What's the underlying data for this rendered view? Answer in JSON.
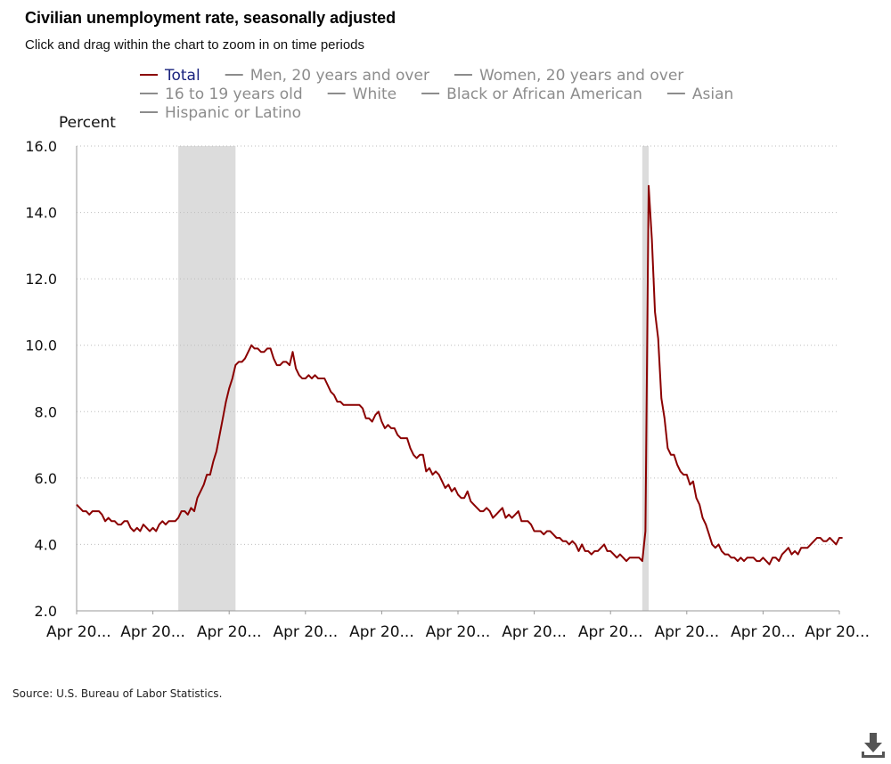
{
  "header": {
    "title": "Civilian unemployment rate, seasonally adjusted",
    "subtitle": "Click and drag within the chart to zoom in on time periods"
  },
  "footer": {
    "source": "Source: U.S. Bureau of Labor Statistics."
  },
  "icons": {
    "download": "download-icon"
  },
  "colors": {
    "total_series": "#8b0000",
    "inactive_series": "#8c8c8c",
    "active_legend_text": "#1a237e",
    "recession_shading": "#dcdcdc",
    "gridline": "#bdbdbd"
  },
  "chart_data": {
    "type": "line",
    "title": "Civilian unemployment rate, seasonally adjusted",
    "ylabel": "Percent",
    "ylim": [
      2.0,
      16.0
    ],
    "yticks": [
      "2.0",
      "4.0",
      "6.0",
      "8.0",
      "10.0",
      "12.0",
      "14.0",
      "16.0"
    ],
    "xticks": [
      "Apr 20...",
      "Apr 20...",
      "Apr 20...",
      "Apr 20...",
      "Apr 20...",
      "Apr 20...",
      "Apr 20...",
      "Apr 20...",
      "Apr 20...",
      "Apr 20...",
      "Apr 20..."
    ],
    "xlim_months": [
      0,
      240
    ],
    "grid": "horizontal dotted",
    "legend_placement": "top",
    "legend": [
      {
        "label": "Total",
        "active": true
      },
      {
        "label": "Men, 20 years and over",
        "active": false
      },
      {
        "label": "Women, 20 years and over",
        "active": false
      },
      {
        "label": "16 to 19 years old",
        "active": false
      },
      {
        "label": "White",
        "active": false
      },
      {
        "label": "Black or African American",
        "active": false
      },
      {
        "label": "Asian",
        "active": false
      },
      {
        "label": "Hispanic or Latino",
        "active": false
      }
    ],
    "recession_bands_months": [
      [
        32,
        50
      ],
      [
        178,
        180
      ]
    ],
    "series": [
      {
        "name": "Total",
        "points_month_value": [
          [
            0,
            5.2
          ],
          [
            1,
            5.1
          ],
          [
            2,
            5.0
          ],
          [
            3,
            5.0
          ],
          [
            4,
            4.9
          ],
          [
            5,
            5.0
          ],
          [
            6,
            5.0
          ],
          [
            7,
            5.0
          ],
          [
            8,
            4.9
          ],
          [
            9,
            4.7
          ],
          [
            10,
            4.8
          ],
          [
            11,
            4.7
          ],
          [
            12,
            4.7
          ],
          [
            13,
            4.6
          ],
          [
            14,
            4.6
          ],
          [
            15,
            4.7
          ],
          [
            16,
            4.7
          ],
          [
            17,
            4.5
          ],
          [
            18,
            4.4
          ],
          [
            19,
            4.5
          ],
          [
            20,
            4.4
          ],
          [
            21,
            4.6
          ],
          [
            22,
            4.5
          ],
          [
            23,
            4.4
          ],
          [
            24,
            4.5
          ],
          [
            25,
            4.4
          ],
          [
            26,
            4.6
          ],
          [
            27,
            4.7
          ],
          [
            28,
            4.6
          ],
          [
            29,
            4.7
          ],
          [
            30,
            4.7
          ],
          [
            31,
            4.7
          ],
          [
            32,
            4.8
          ],
          [
            33,
            5.0
          ],
          [
            34,
            5.0
          ],
          [
            35,
            4.9
          ],
          [
            36,
            5.1
          ],
          [
            37,
            5.0
          ],
          [
            38,
            5.4
          ],
          [
            39,
            5.6
          ],
          [
            40,
            5.8
          ],
          [
            41,
            6.1
          ],
          [
            42,
            6.1
          ],
          [
            43,
            6.5
          ],
          [
            44,
            6.8
          ],
          [
            45,
            7.3
          ],
          [
            46,
            7.8
          ],
          [
            47,
            8.3
          ],
          [
            48,
            8.7
          ],
          [
            49,
            9.0
          ],
          [
            50,
            9.4
          ],
          [
            51,
            9.5
          ],
          [
            52,
            9.5
          ],
          [
            53,
            9.6
          ],
          [
            54,
            9.8
          ],
          [
            55,
            10.0
          ],
          [
            56,
            9.9
          ],
          [
            57,
            9.9
          ],
          [
            58,
            9.8
          ],
          [
            59,
            9.8
          ],
          [
            60,
            9.9
          ],
          [
            61,
            9.9
          ],
          [
            62,
            9.6
          ],
          [
            63,
            9.4
          ],
          [
            64,
            9.4
          ],
          [
            65,
            9.5
          ],
          [
            66,
            9.5
          ],
          [
            67,
            9.4
          ],
          [
            68,
            9.8
          ],
          [
            69,
            9.3
          ],
          [
            70,
            9.1
          ],
          [
            71,
            9.0
          ],
          [
            72,
            9.0
          ],
          [
            73,
            9.1
          ],
          [
            74,
            9.0
          ],
          [
            75,
            9.1
          ],
          [
            76,
            9.0
          ],
          [
            77,
            9.0
          ],
          [
            78,
            9.0
          ],
          [
            79,
            8.8
          ],
          [
            80,
            8.6
          ],
          [
            81,
            8.5
          ],
          [
            82,
            8.3
          ],
          [
            83,
            8.3
          ],
          [
            84,
            8.2
          ],
          [
            85,
            8.2
          ],
          [
            86,
            8.2
          ],
          [
            87,
            8.2
          ],
          [
            88,
            8.2
          ],
          [
            89,
            8.2
          ],
          [
            90,
            8.1
          ],
          [
            91,
            7.8
          ],
          [
            92,
            7.8
          ],
          [
            93,
            7.7
          ],
          [
            94,
            7.9
          ],
          [
            95,
            8.0
          ],
          [
            96,
            7.7
          ],
          [
            97,
            7.5
          ],
          [
            98,
            7.6
          ],
          [
            99,
            7.5
          ],
          [
            100,
            7.5
          ],
          [
            101,
            7.3
          ],
          [
            102,
            7.2
          ],
          [
            103,
            7.2
          ],
          [
            104,
            7.2
          ],
          [
            105,
            6.9
          ],
          [
            106,
            6.7
          ],
          [
            107,
            6.6
          ],
          [
            108,
            6.7
          ],
          [
            109,
            6.7
          ],
          [
            110,
            6.2
          ],
          [
            111,
            6.3
          ],
          [
            112,
            6.1
          ],
          [
            113,
            6.2
          ],
          [
            114,
            6.1
          ],
          [
            115,
            5.9
          ],
          [
            116,
            5.7
          ],
          [
            117,
            5.8
          ],
          [
            118,
            5.6
          ],
          [
            119,
            5.7
          ],
          [
            120,
            5.5
          ],
          [
            121,
            5.4
          ],
          [
            122,
            5.4
          ],
          [
            123,
            5.6
          ],
          [
            124,
            5.3
          ],
          [
            125,
            5.2
          ],
          [
            126,
            5.1
          ],
          [
            127,
            5.0
          ],
          [
            128,
            5.0
          ],
          [
            129,
            5.1
          ],
          [
            130,
            5.0
          ],
          [
            131,
            4.8
          ],
          [
            132,
            4.9
          ],
          [
            133,
            5.0
          ],
          [
            134,
            5.1
          ],
          [
            135,
            4.8
          ],
          [
            136,
            4.9
          ],
          [
            137,
            4.8
          ],
          [
            138,
            4.9
          ],
          [
            139,
            5.0
          ],
          [
            140,
            4.7
          ],
          [
            141,
            4.7
          ],
          [
            142,
            4.7
          ],
          [
            143,
            4.6
          ],
          [
            144,
            4.4
          ],
          [
            145,
            4.4
          ],
          [
            146,
            4.4
          ],
          [
            147,
            4.3
          ],
          [
            148,
            4.4
          ],
          [
            149,
            4.4
          ],
          [
            150,
            4.3
          ],
          [
            151,
            4.2
          ],
          [
            152,
            4.2
          ],
          [
            153,
            4.1
          ],
          [
            154,
            4.1
          ],
          [
            155,
            4.0
          ],
          [
            156,
            4.1
          ],
          [
            157,
            4.0
          ],
          [
            158,
            3.8
          ],
          [
            159,
            4.0
          ],
          [
            160,
            3.8
          ],
          [
            161,
            3.8
          ],
          [
            162,
            3.7
          ],
          [
            163,
            3.8
          ],
          [
            164,
            3.8
          ],
          [
            165,
            3.9
          ],
          [
            166,
            4.0
          ],
          [
            167,
            3.8
          ],
          [
            168,
            3.8
          ],
          [
            169,
            3.7
          ],
          [
            170,
            3.6
          ],
          [
            171,
            3.7
          ],
          [
            172,
            3.6
          ],
          [
            173,
            3.5
          ],
          [
            174,
            3.6
          ],
          [
            175,
            3.6
          ],
          [
            176,
            3.6
          ],
          [
            177,
            3.6
          ],
          [
            178,
            3.5
          ],
          [
            179,
            4.4
          ],
          [
            180,
            14.8
          ],
          [
            181,
            13.2
          ],
          [
            182,
            11.0
          ],
          [
            183,
            10.2
          ],
          [
            184,
            8.4
          ],
          [
            185,
            7.8
          ],
          [
            186,
            6.9
          ],
          [
            187,
            6.7
          ],
          [
            188,
            6.7
          ],
          [
            189,
            6.4
          ],
          [
            190,
            6.2
          ],
          [
            191,
            6.1
          ],
          [
            192,
            6.1
          ],
          [
            193,
            5.8
          ],
          [
            194,
            5.9
          ],
          [
            195,
            5.4
          ],
          [
            196,
            5.2
          ],
          [
            197,
            4.8
          ],
          [
            198,
            4.6
          ],
          [
            199,
            4.3
          ],
          [
            200,
            4.0
          ],
          [
            201,
            3.9
          ],
          [
            202,
            4.0
          ],
          [
            203,
            3.8
          ],
          [
            204,
            3.7
          ],
          [
            205,
            3.7
          ],
          [
            206,
            3.6
          ],
          [
            207,
            3.6
          ],
          [
            208,
            3.5
          ],
          [
            209,
            3.6
          ],
          [
            210,
            3.5
          ],
          [
            211,
            3.6
          ],
          [
            212,
            3.6
          ],
          [
            213,
            3.6
          ],
          [
            214,
            3.5
          ],
          [
            215,
            3.5
          ],
          [
            216,
            3.6
          ],
          [
            217,
            3.5
          ],
          [
            218,
            3.4
          ],
          [
            219,
            3.6
          ],
          [
            220,
            3.6
          ],
          [
            221,
            3.5
          ],
          [
            222,
            3.7
          ],
          [
            223,
            3.8
          ],
          [
            224,
            3.9
          ],
          [
            225,
            3.7
          ],
          [
            226,
            3.8
          ],
          [
            227,
            3.7
          ],
          [
            228,
            3.9
          ],
          [
            229,
            3.9
          ],
          [
            230,
            3.9
          ],
          [
            231,
            4.0
          ],
          [
            232,
            4.1
          ],
          [
            233,
            4.2
          ],
          [
            234,
            4.2
          ],
          [
            235,
            4.1
          ],
          [
            236,
            4.1
          ],
          [
            237,
            4.2
          ],
          [
            238,
            4.1
          ],
          [
            239,
            4.0
          ],
          [
            240,
            4.2
          ],
          [
            241,
            4.2
          ]
        ]
      }
    ]
  }
}
